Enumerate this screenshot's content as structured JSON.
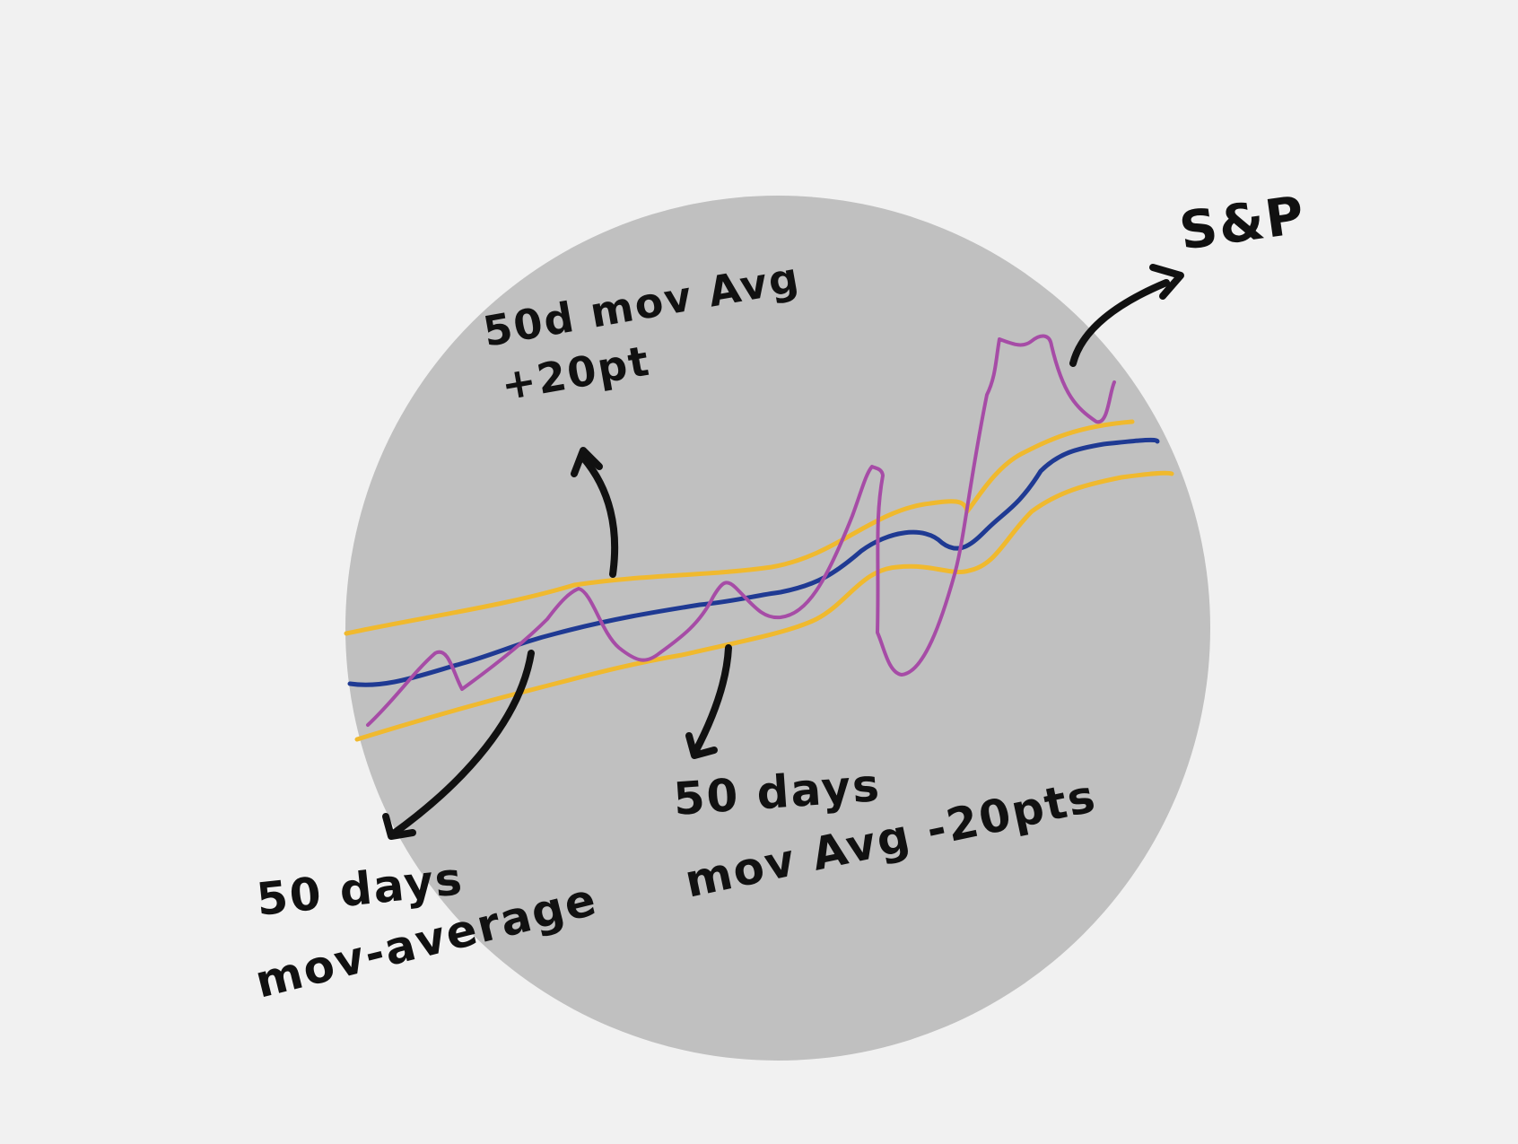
{
  "colors": {
    "paper": "#f1f1f1",
    "disc": "#c0c0c0",
    "sp_line": "#a64ca6",
    "ma_line": "#1f3a93",
    "band_line": "#f0b92e",
    "ink": "#111111"
  },
  "labels": {
    "sp": "S&P",
    "upper_band_line1": "50d mov Avg",
    "upper_band_line2": "+20pt",
    "ma_line1": "50 days",
    "ma_line2": "mov-average",
    "lower_band_line1": "50 days",
    "lower_band_line2": "mov Avg -20pts"
  },
  "legend_items": [
    {
      "name": "S&P",
      "color": "#a64ca6"
    },
    {
      "name": "50 days mov-average",
      "color": "#1f3a93"
    },
    {
      "name": "50d mov Avg +20pt",
      "color": "#f0b92e"
    },
    {
      "name": "50 days mov Avg -20pts",
      "color": "#f0b92e"
    }
  ]
}
